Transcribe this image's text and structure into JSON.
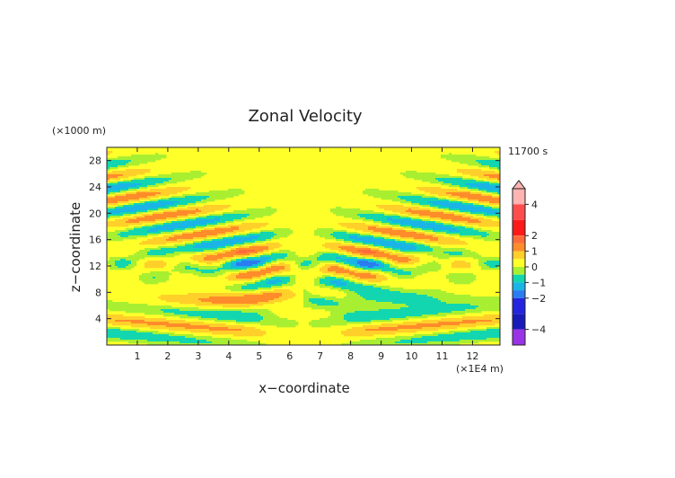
{
  "chart_data": {
    "type": "heatmap",
    "title": "Zonal Velocity",
    "xlabel": "x−coordinate",
    "ylabel": "z−coordinate",
    "x_unit": "(×1E4 m)",
    "y_unit": "(×1000 m)",
    "time_label": "11700 s",
    "xlim": [
      0,
      12.9
    ],
    "ylim": [
      0,
      30
    ],
    "x_ticks": [
      1,
      2,
      3,
      4,
      5,
      6,
      7,
      8,
      9,
      10,
      11,
      12
    ],
    "y_ticks": [
      4,
      8,
      12,
      16,
      20,
      24,
      28
    ],
    "colorbar": {
      "min": -5,
      "max": 5,
      "ticks": [
        4,
        2,
        1,
        0,
        -1,
        -2,
        -4
      ],
      "levels": [
        {
          "lo": 4,
          "hi": 5,
          "color": "#ffb3b3"
        },
        {
          "lo": 3,
          "hi": 4,
          "color": "#ff4d4d"
        },
        {
          "lo": 2,
          "hi": 3,
          "color": "#ff1a1a"
        },
        {
          "lo": 1.5,
          "hi": 2,
          "color": "#ff6a3a"
        },
        {
          "lo": 1,
          "hi": 1.5,
          "color": "#ff8c2a"
        },
        {
          "lo": 0.5,
          "hi": 1,
          "color": "#ffd02a"
        },
        {
          "lo": 0,
          "hi": 0.5,
          "color": "#ffff2a"
        },
        {
          "lo": -0.5,
          "hi": 0,
          "color": "#a8ef32"
        },
        {
          "lo": -1,
          "hi": -0.5,
          "color": "#12d6b0"
        },
        {
          "lo": -1.5,
          "hi": -1,
          "color": "#1ab4e6"
        },
        {
          "lo": -2,
          "hi": -1.5,
          "color": "#2a7cf0"
        },
        {
          "lo": -3,
          "hi": -2,
          "color": "#2424e0"
        },
        {
          "lo": -4,
          "hi": -3,
          "color": "#1a1ab8"
        },
        {
          "lo": -5,
          "hi": -4,
          "color": "#9a33e6"
        }
      ]
    }
  }
}
